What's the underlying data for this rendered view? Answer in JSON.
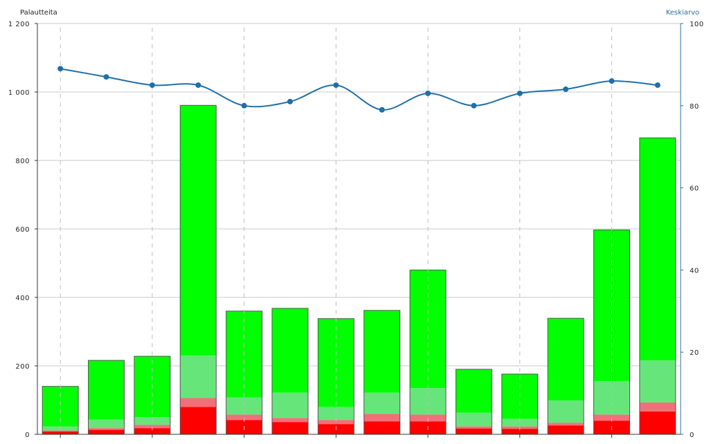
{
  "chart_data": {
    "type": "bar",
    "stacked": true,
    "left_axis": {
      "title": "Palautteita",
      "min": 0,
      "max": 1200,
      "ticks": [
        0,
        200,
        400,
        600,
        800,
        1000,
        1200
      ],
      "tick_labels": [
        "0",
        "200",
        "400",
        "600",
        "800",
        "1 000",
        "1 200"
      ]
    },
    "right_axis": {
      "title": "Keskiarvo",
      "min": 0,
      "max": 100,
      "ticks": [
        0,
        20,
        40,
        60,
        80,
        100
      ],
      "tick_labels": [
        "0",
        "20",
        "40",
        "60",
        "80",
        "100"
      ]
    },
    "grid": true,
    "category_count": 14,
    "series": [
      {
        "color": "#ff0000",
        "values": [
          8,
          13,
          18,
          80,
          42,
          36,
          30,
          38,
          38,
          17,
          16,
          26,
          40,
          67
        ]
      },
      {
        "color": "#f0707a",
        "values": [
          3,
          5,
          10,
          26,
          16,
          12,
          12,
          22,
          20,
          6,
          7,
          8,
          18,
          26
        ]
      },
      {
        "color": "#66e57b",
        "values": [
          12,
          25,
          22,
          124,
          50,
          74,
          38,
          62,
          77,
          40,
          22,
          65,
          97,
          123
        ]
      },
      {
        "color": "#00ff00",
        "values": [
          117,
          173,
          178,
          731,
          252,
          246,
          258,
          240,
          345,
          127,
          131,
          240,
          442,
          650
        ]
      }
    ],
    "line_series": {
      "axis": "right",
      "color": "#1f6fa8",
      "values": [
        89,
        87,
        85,
        85,
        80,
        81,
        85,
        79,
        83,
        80,
        83,
        84,
        86,
        85
      ]
    }
  }
}
